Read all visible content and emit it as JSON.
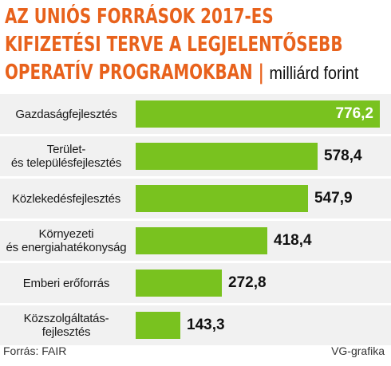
{
  "title": {
    "line1": "AZ UNIÓS FORRÁSOK 2017-ES",
    "line2": "KIFIZETÉSI TERVE A LEGJELENTŐSEBB",
    "line3": "OPERATÍV PROGRAMOKBAN",
    "separator": "|",
    "unit": "milliárd forint"
  },
  "colors": {
    "bar": "#79c21f",
    "title": "#e8621c",
    "row_bg": "#f1f1f1"
  },
  "chart_data": {
    "type": "bar",
    "orientation": "horizontal",
    "title": "AZ UNIÓS FORRÁSOK 2017-ES KIFIZETÉSI TERVE A LEGJELENTŐSEBB OPERATÍV PROGRAMOKBAN",
    "unit": "milliárd forint",
    "categories": [
      "Gazdaságfejlesztés",
      "Terület- és településfejlesztés",
      "Közlekedésfejlesztés",
      "Környezeti és energiahatékonyság",
      "Emberi erőforrás",
      "Közszolgáltatás-fejlesztés"
    ],
    "category_lines": [
      [
        "Gazdaságfejlesztés"
      ],
      [
        "Terület-",
        "és településfejlesztés"
      ],
      [
        "Közlekedésfejlesztés"
      ],
      [
        "Környezeti",
        "és energiahatékonyság"
      ],
      [
        "Emberi erőforrás"
      ],
      [
        "Közszolgáltatás-fejlesztés"
      ]
    ],
    "values": [
      776.2,
      578.4,
      547.9,
      418.4,
      272.8,
      143.3
    ],
    "value_labels": [
      "776,2",
      "578,4",
      "547,9",
      "418,4",
      "272,8",
      "143,3"
    ],
    "xlim": [
      0,
      776.2
    ],
    "grid": false
  },
  "footer": {
    "source": "Forrás: FAIR",
    "credit": "VG-grafika"
  }
}
